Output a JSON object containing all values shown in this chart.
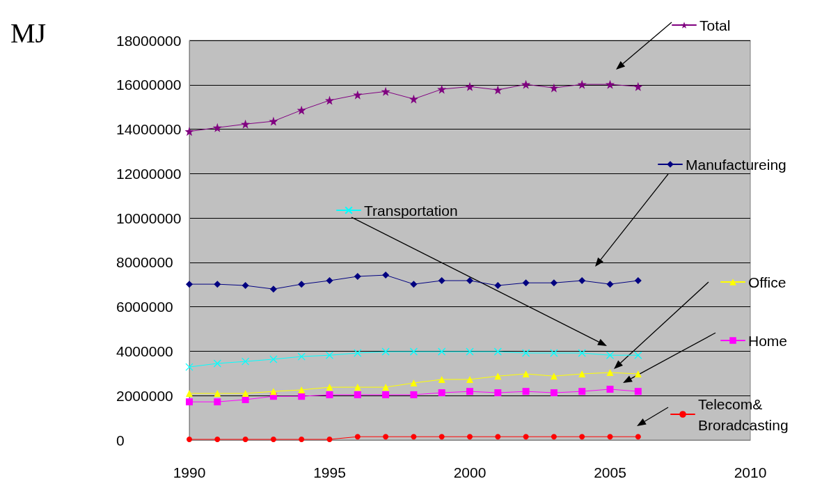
{
  "chart_data": {
    "type": "line",
    "ylabel": "MJ",
    "x": [
      1990,
      1991,
      1992,
      1993,
      1994,
      1995,
      1996,
      1997,
      1998,
      1999,
      2000,
      2001,
      2002,
      2003,
      2004,
      2005,
      2006
    ],
    "series": [
      {
        "name": "Total",
        "color": "#800080",
        "marker": "star",
        "values": [
          13900000,
          14070000,
          14230000,
          14360000,
          14860000,
          15300000,
          15550000,
          15700000,
          15360000,
          15800000,
          15920000,
          15770000,
          16020000,
          15860000,
          16020000,
          16020000,
          15920000
        ]
      },
      {
        "name": "Manufactureing",
        "color": "#000080",
        "marker": "diamond",
        "values": [
          7020000,
          7020000,
          6960000,
          6800000,
          7020000,
          7180000,
          7370000,
          7430000,
          7020000,
          7180000,
          7180000,
          6960000,
          7080000,
          7080000,
          7180000,
          7020000,
          7180000
        ]
      },
      {
        "name": "Transportation",
        "color": "#00ffff",
        "marker": "cross",
        "values": [
          3290000,
          3450000,
          3540000,
          3640000,
          3760000,
          3820000,
          3920000,
          3980000,
          3980000,
          3980000,
          3980000,
          3980000,
          3920000,
          3920000,
          3920000,
          3820000,
          3820000
        ]
      },
      {
        "name": "Office",
        "color": "#ffff00",
        "marker": "triangle",
        "values": [
          2100000,
          2100000,
          2100000,
          2190000,
          2260000,
          2380000,
          2380000,
          2380000,
          2570000,
          2730000,
          2730000,
          2880000,
          2980000,
          2880000,
          2980000,
          3040000,
          2980000
        ]
      },
      {
        "name": "Home",
        "color": "#ff00ff",
        "marker": "square",
        "values": [
          1720000,
          1720000,
          1820000,
          1970000,
          1970000,
          2040000,
          2040000,
          2040000,
          2040000,
          2130000,
          2190000,
          2130000,
          2190000,
          2130000,
          2190000,
          2290000,
          2190000
        ]
      },
      {
        "name": "Telecom& Broradcasting",
        "color": "#ff0000",
        "marker": "circle",
        "values": [
          30000,
          30000,
          30000,
          30000,
          30000,
          30000,
          150000,
          150000,
          150000,
          150000,
          150000,
          150000,
          150000,
          150000,
          150000,
          150000,
          150000
        ]
      }
    ],
    "xlim": [
      1990,
      2010
    ],
    "xticks": [
      1990,
      1995,
      2000,
      2005,
      2010
    ],
    "ylim": [
      0,
      18000000
    ],
    "yticks": [
      0,
      2000000,
      4000000,
      6000000,
      8000000,
      10000000,
      12000000,
      14000000,
      16000000,
      18000000
    ],
    "grid": "y",
    "legend": "right"
  }
}
